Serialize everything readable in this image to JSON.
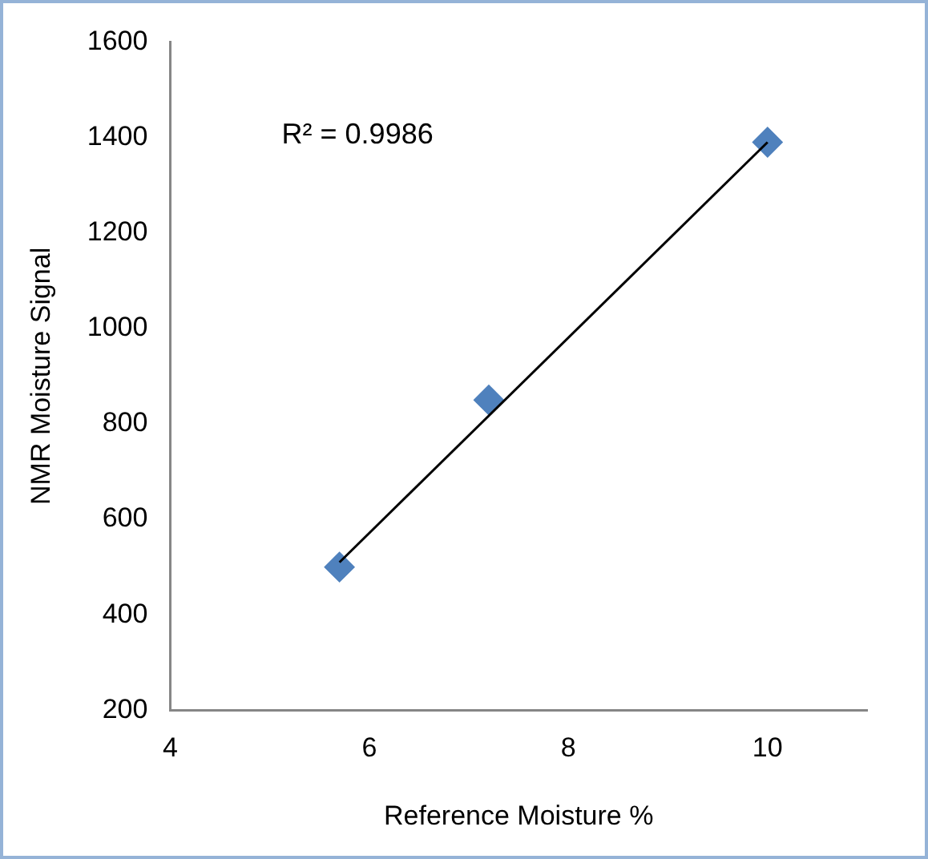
{
  "chart_data": {
    "type": "scatter",
    "xlabel": "Reference Moisture %",
    "ylabel": "NMR Moisture Signal",
    "annotations": [
      "R² = 0.9986"
    ],
    "series": [
      {
        "color": "#4f81bd",
        "marker": "diamond",
        "x": [
          5.7,
          7.2,
          10
        ],
        "values": [
          500,
          850,
          1390
        ]
      },
      {
        "type": "line",
        "color": "#000000",
        "marker": "none",
        "x": [
          5.7,
          10
        ],
        "values": [
          510,
          1390
        ]
      }
    ],
    "xlim": [
      4,
      11
    ],
    "xticks": [
      4,
      6,
      8,
      10
    ],
    "ylim": [
      200,
      1600
    ],
    "yticks": [
      200,
      400,
      600,
      800,
      1000,
      1200,
      1400,
      1600
    ],
    "grid": false,
    "legend": false
  }
}
